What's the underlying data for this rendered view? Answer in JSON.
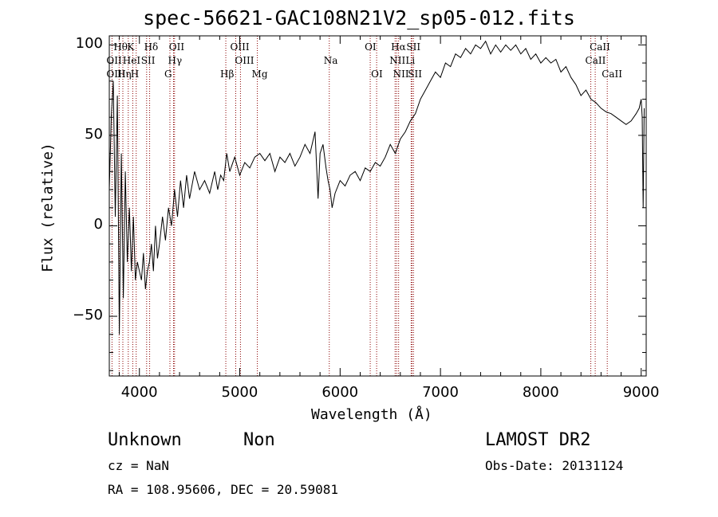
{
  "chart_data": {
    "type": "line",
    "title": "spec-56621-GAC108N21V2_sp05-012.fits",
    "xlabel": "Wavelength (Å)",
    "ylabel": "Flux (relative)",
    "xlim": [
      3700,
      9050
    ],
    "ylim": [
      -83,
      105
    ],
    "xticks": [
      4000,
      5000,
      6000,
      7000,
      8000,
      9000
    ],
    "yticks": [
      -50,
      0,
      50,
      100
    ],
    "grid": false,
    "series": [
      {
        "points": [
          [
            3700,
            20
          ],
          [
            3720,
            60
          ],
          [
            3740,
            80
          ],
          [
            3760,
            5
          ],
          [
            3780,
            72
          ],
          [
            3800,
            -60
          ],
          [
            3820,
            40
          ],
          [
            3840,
            -40
          ],
          [
            3860,
            30
          ],
          [
            3880,
            -20
          ],
          [
            3900,
            10
          ],
          [
            3920,
            -25
          ],
          [
            3940,
            5
          ],
          [
            3960,
            -30
          ],
          [
            3980,
            -20
          ],
          [
            4000,
            -25
          ],
          [
            4020,
            -30
          ],
          [
            4040,
            -15
          ],
          [
            4060,
            -35
          ],
          [
            4080,
            -25
          ],
          [
            4100,
            -20
          ],
          [
            4120,
            -10
          ],
          [
            4140,
            -25
          ],
          [
            4160,
            0
          ],
          [
            4180,
            -18
          ],
          [
            4200,
            -10
          ],
          [
            4230,
            5
          ],
          [
            4260,
            -8
          ],
          [
            4290,
            10
          ],
          [
            4320,
            0
          ],
          [
            4350,
            20
          ],
          [
            4380,
            5
          ],
          [
            4410,
            25
          ],
          [
            4440,
            10
          ],
          [
            4470,
            28
          ],
          [
            4500,
            15
          ],
          [
            4550,
            30
          ],
          [
            4600,
            20
          ],
          [
            4650,
            25
          ],
          [
            4700,
            18
          ],
          [
            4750,
            30
          ],
          [
            4780,
            20
          ],
          [
            4810,
            28
          ],
          [
            4840,
            25
          ],
          [
            4870,
            40
          ],
          [
            4900,
            30
          ],
          [
            4950,
            38
          ],
          [
            5000,
            28
          ],
          [
            5050,
            35
          ],
          [
            5100,
            32
          ],
          [
            5150,
            38
          ],
          [
            5200,
            40
          ],
          [
            5250,
            36
          ],
          [
            5300,
            40
          ],
          [
            5350,
            30
          ],
          [
            5400,
            38
          ],
          [
            5450,
            35
          ],
          [
            5500,
            40
          ],
          [
            5550,
            33
          ],
          [
            5600,
            38
          ],
          [
            5650,
            45
          ],
          [
            5700,
            40
          ],
          [
            5750,
            52
          ],
          [
            5780,
            15
          ],
          [
            5800,
            40
          ],
          [
            5830,
            45
          ],
          [
            5860,
            32
          ],
          [
            5880,
            25
          ],
          [
            5900,
            20
          ],
          [
            5920,
            10
          ],
          [
            5950,
            18
          ],
          [
            6000,
            25
          ],
          [
            6050,
            22
          ],
          [
            6100,
            28
          ],
          [
            6150,
            30
          ],
          [
            6200,
            25
          ],
          [
            6250,
            32
          ],
          [
            6300,
            30
          ],
          [
            6350,
            35
          ],
          [
            6400,
            33
          ],
          [
            6450,
            38
          ],
          [
            6500,
            45
          ],
          [
            6550,
            40
          ],
          [
            6600,
            48
          ],
          [
            6650,
            52
          ],
          [
            6700,
            58
          ],
          [
            6750,
            62
          ],
          [
            6800,
            70
          ],
          [
            6850,
            75
          ],
          [
            6900,
            80
          ],
          [
            6950,
            85
          ],
          [
            7000,
            82
          ],
          [
            7050,
            90
          ],
          [
            7100,
            88
          ],
          [
            7150,
            95
          ],
          [
            7200,
            93
          ],
          [
            7250,
            98
          ],
          [
            7300,
            95
          ],
          [
            7350,
            100
          ],
          [
            7400,
            98
          ],
          [
            7450,
            102
          ],
          [
            7500,
            95
          ],
          [
            7550,
            100
          ],
          [
            7600,
            96
          ],
          [
            7650,
            100
          ],
          [
            7700,
            97
          ],
          [
            7750,
            100
          ],
          [
            7800,
            95
          ],
          [
            7850,
            98
          ],
          [
            7900,
            92
          ],
          [
            7950,
            95
          ],
          [
            8000,
            90
          ],
          [
            8050,
            93
          ],
          [
            8100,
            90
          ],
          [
            8150,
            92
          ],
          [
            8200,
            85
          ],
          [
            8250,
            88
          ],
          [
            8300,
            82
          ],
          [
            8350,
            78
          ],
          [
            8400,
            72
          ],
          [
            8450,
            75
          ],
          [
            8500,
            70
          ],
          [
            8550,
            68
          ],
          [
            8600,
            65
          ],
          [
            8650,
            63
          ],
          [
            8700,
            62
          ],
          [
            8750,
            60
          ],
          [
            8800,
            58
          ],
          [
            8850,
            56
          ],
          [
            8900,
            58
          ],
          [
            8950,
            62
          ],
          [
            8980,
            65
          ],
          [
            9000,
            70
          ],
          [
            9010,
            60
          ],
          [
            9020,
            10
          ],
          [
            9030,
            65
          ]
        ]
      }
    ],
    "spectral_lines": [
      {
        "label": "Hθ",
        "wavelength": 3798,
        "row": 0
      },
      {
        "label": "K",
        "wavelength": 3934,
        "row": 0
      },
      {
        "label": "Hδ",
        "wavelength": 4102,
        "row": 0
      },
      {
        "label": "OII",
        "wavelength": 4350,
        "row": 0
      },
      {
        "label": "OIII",
        "wavelength": 4960,
        "row": 0
      },
      {
        "label": "OI",
        "wavelength": 6300,
        "row": 0
      },
      {
        "label": "Hα",
        "wavelength": 6563,
        "row": 0
      },
      {
        "label": "SII",
        "wavelength": 6716,
        "row": 0
      },
      {
        "label": "CaII",
        "wavelength": 8542,
        "row": 0
      },
      {
        "label": "OII",
        "wavelength": 3727,
        "row": 1
      },
      {
        "label": "HeI",
        "wavelength": 3889,
        "row": 1
      },
      {
        "label": "SII",
        "wavelength": 4072,
        "row": 1
      },
      {
        "label": "Hγ",
        "wavelength": 4340,
        "row": 1
      },
      {
        "label": "OIII",
        "wavelength": 5007,
        "row": 1
      },
      {
        "label": "Na",
        "wavelength": 5892,
        "row": 1
      },
      {
        "label": "NII",
        "wavelength": 6548,
        "row": 1
      },
      {
        "label": "Li",
        "wavelength": 6708,
        "row": 1
      },
      {
        "label": "CaII",
        "wavelength": 8498,
        "row": 1
      },
      {
        "label": "OIII",
        "wavelength": 3727,
        "row": 2
      },
      {
        "label": "Hη",
        "wavelength": 3835,
        "row": 2
      },
      {
        "label": "H",
        "wavelength": 3968,
        "row": 2
      },
      {
        "label": "G",
        "wavelength": 4304,
        "row": 2
      },
      {
        "label": "Hβ",
        "wavelength": 4861,
        "row": 2
      },
      {
        "label": "Mg",
        "wavelength": 5175,
        "row": 2
      },
      {
        "label": "OI",
        "wavelength": 6364,
        "row": 2
      },
      {
        "label": "NII",
        "wavelength": 6583,
        "row": 2
      },
      {
        "label": "SII",
        "wavelength": 6731,
        "row": 2
      },
      {
        "label": "CaII",
        "wavelength": 8662,
        "row": 2
      }
    ]
  },
  "info": {
    "class": "Unknown",
    "subclass": "Non",
    "survey": "LAMOST DR2",
    "cz": "cz = NaN",
    "obs_date": "Obs-Date: 20131124",
    "coords": "RA = 108.95606, DEC =  20.59081"
  },
  "colors": {
    "spectrum": "#000000",
    "line_marker": "#8b0000"
  }
}
